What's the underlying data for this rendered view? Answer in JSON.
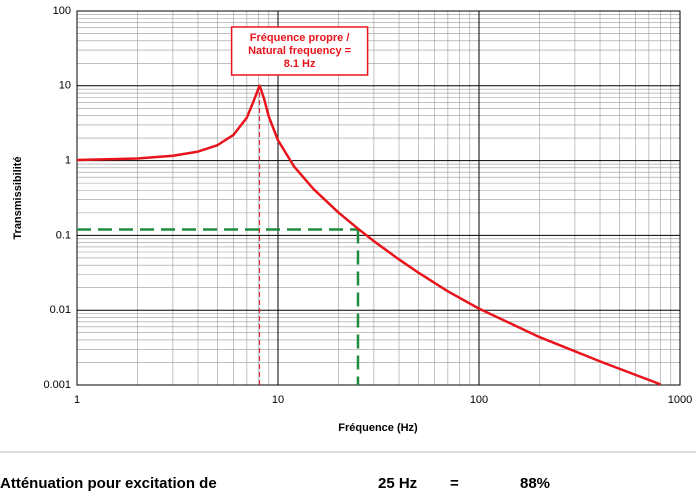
{
  "chart_data": {
    "type": "line",
    "x_label": "Fréquence (Hz)",
    "y_label": "Transmissibilité",
    "x_scale": "log",
    "y_scale": "log",
    "grid": true,
    "x": [
      1,
      2,
      3,
      4,
      5,
      6,
      7,
      7.5,
      8.1,
      8.5,
      9,
      10,
      12,
      15,
      20,
      25,
      30,
      40,
      50,
      70,
      100,
      200,
      400,
      800
    ],
    "series": [
      {
        "name": "Transmissibilité",
        "color": "#e8141b",
        "values": [
          1.02,
          1.065,
          1.16,
          1.32,
          1.61,
          2.2,
          3.76,
          5.9,
          10.05,
          6.9,
          3.87,
          1.87,
          0.84,
          0.418,
          0.202,
          0.123,
          0.0838,
          0.0477,
          0.0317,
          0.0179,
          0.0105,
          0.00437,
          0.00207,
          0.00102
        ]
      }
    ],
    "xlim": [
      1,
      1000
    ],
    "ylim": [
      0.001,
      100
    ],
    "xticks": [
      1,
      10,
      100,
      1000
    ],
    "yticks": [
      0.001,
      0.01,
      0.1,
      1,
      10,
      100
    ],
    "natural_frequency": 8.1,
    "natural_frequency_color": "#e8141b",
    "excitation_frequency": 25,
    "excitation_transmissibility": 0.12,
    "excitation_color": "#1e8c3c",
    "annotation": [
      "Fréquence propre /",
      "Natural frequency =",
      "8.1  Hz"
    ]
  },
  "footer": {
    "label": "Atténuation pour excitation de",
    "frequency": "25  Hz",
    "equals": "=",
    "attenuation": "88%"
  }
}
